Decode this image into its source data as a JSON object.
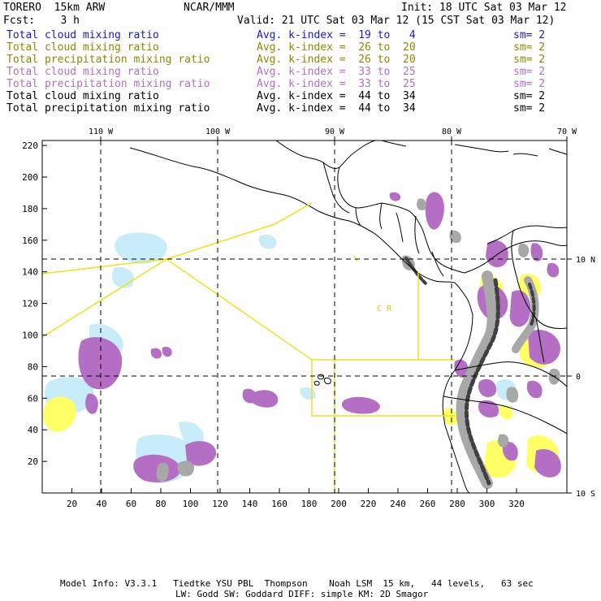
{
  "header": {
    "model": "TORERO  15km ARW",
    "center": "NCAR/MMM",
    "init": "Init: 18 UTC Sat 03 Mar 12",
    "fcst": "Fcst:    3 h",
    "valid": "Valid: 21 UTC Sat 03 Mar 12 (15 CST Sat 03 Mar 12)"
  },
  "legend": [
    {
      "field": "Total cloud mixing ratio",
      "kindex": "Avg. k-index =  19 to   4",
      "sm": "sm= 2",
      "color": "#1a1acc"
    },
    {
      "field": "Total cloud mixing ratio",
      "kindex": "Avg. k-index =  26 to  20",
      "sm": "sm= 2",
      "color": "#8a8a00"
    },
    {
      "field": "Total precipitation mixing ratio",
      "kindex": "Avg. k-index =  26 to  20",
      "sm": "sm= 2",
      "color": "#8a8a00"
    },
    {
      "field": "Total cloud mixing ratio",
      "kindex": "Avg. k-index =  33 to  25",
      "sm": "sm= 2",
      "color": "#b070c0"
    },
    {
      "field": "Total precipitation mixing ratio",
      "kindex": "Avg. k-index =  33 to  25",
      "sm": "sm= 2",
      "color": "#b070c0"
    },
    {
      "field": "Total cloud mixing ratio",
      "kindex": "Avg. k-index =  44 to  34",
      "sm": "sm= 2",
      "color": "#000000"
    },
    {
      "field": "Total precipitation mixing ratio",
      "kindex": "Avg. k-index =  44 to  34",
      "sm": "sm= 2",
      "color": "#000000"
    }
  ],
  "map": {
    "lon_labels": [
      "110 W",
      "100 W",
      "90 W",
      "80 W",
      "70 W"
    ],
    "lat_labels": [
      "10 N",
      "0",
      "10 S"
    ],
    "x_ticks": [
      "20",
      "40",
      "60",
      "80",
      "100",
      "120",
      "140",
      "160",
      "180",
      "200",
      "220",
      "240",
      "260",
      "280",
      "300",
      "320"
    ],
    "y_ticks": [
      "20",
      "40",
      "60",
      "80",
      "100",
      "120",
      "140",
      "160",
      "180",
      "200",
      "220"
    ],
    "region_label": "C  R",
    "colors": {
      "cyan": "#c8ecfa",
      "yellow": "#ffff66",
      "purple": "#b46ec4",
      "gray": "#a8a8a8",
      "dark": "#404040",
      "boundary": "#f0e020"
    }
  },
  "footer": {
    "line1": "Model Info: V3.3.1   Tiedtke YSU PBL  Thompson    Noah LSM  15 km,   44 levels,   63 sec",
    "line2": "LW: Godd SW: Goddard DIFF: simple KM: 2D Smagor"
  }
}
